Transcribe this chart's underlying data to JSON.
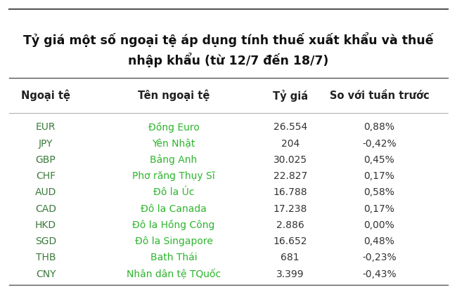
{
  "title_line1": "Tỷ giá một số ngoại tệ áp dụng tính thuế xuất khẩu và thuế",
  "title_line2": "nhập khẩu (từ 12/7 đến 18/7)",
  "col_headers": [
    "Ngoại tệ",
    "Tên ngoại tệ",
    "Tỷ giá",
    "So với tuần trước"
  ],
  "rows": [
    [
      "EUR",
      "Đồng Euro",
      "26.554",
      "0,88%"
    ],
    [
      "JPY",
      "Yên Nhật",
      "204",
      "-0,42%"
    ],
    [
      "GBP",
      "Bảng Anh",
      "30.025",
      "0,45%"
    ],
    [
      "CHF",
      "Phơ răng Thụy Sĩ",
      "22.827",
      "0,17%"
    ],
    [
      "AUD",
      "Đô la Úc",
      "16.788",
      "0,58%"
    ],
    [
      "CAD",
      "Đô la Canada",
      "17.238",
      "0,17%"
    ],
    [
      "HKD",
      "Đô la Hồng Công",
      "2.886",
      "0,00%"
    ],
    [
      "SGD",
      "Đô la Singapore",
      "16.652",
      "0,48%"
    ],
    [
      "THB",
      "Bath Thái",
      "681",
      "-0,23%"
    ],
    [
      "CNY",
      "Nhân dân tệ TQuốc",
      "3.399",
      "-0,43%"
    ]
  ],
  "col0_color": "#3a7a3a",
  "col1_color": "#2db52d",
  "col2_color": "#333333",
  "col3_color": "#333333",
  "header_color": "#222222",
  "title_color": "#111111",
  "bg_color": "#ffffff",
  "top_line_color": "#555555",
  "bottom_line_color": "#555555",
  "header_line_color": "#aaaaaa",
  "title_fontsize": 12.5,
  "header_fontsize": 10.5,
  "row_fontsize": 10
}
